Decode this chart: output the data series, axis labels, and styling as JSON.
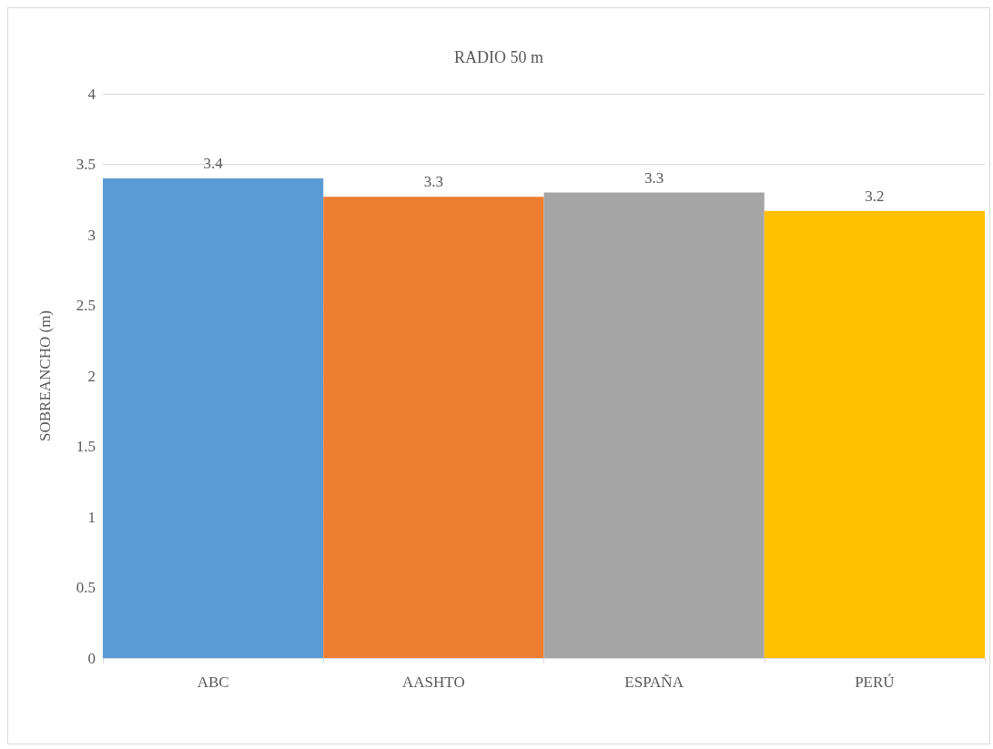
{
  "chart_data": {
    "type": "bar",
    "title": "RADIO 50 m",
    "ylabel": "SOBREANCHO (m)",
    "categories": [
      "ABC",
      "AASHTO",
      "ESPAÑA",
      "PERÚ"
    ],
    "values": [
      3.4,
      3.27,
      3.3,
      3.17
    ],
    "colors": [
      "#5b9bd5",
      "#ed7d31",
      "#a5a5a5",
      "#ffc000"
    ],
    "value_labels": [
      "3.4",
      "3.3",
      "3.3",
      "3.2"
    ],
    "ylim": [
      0,
      4
    ],
    "yticks": [
      0,
      0.5,
      1,
      1.5,
      2,
      2.5,
      3,
      3.5,
      4
    ],
    "grid": "y"
  }
}
